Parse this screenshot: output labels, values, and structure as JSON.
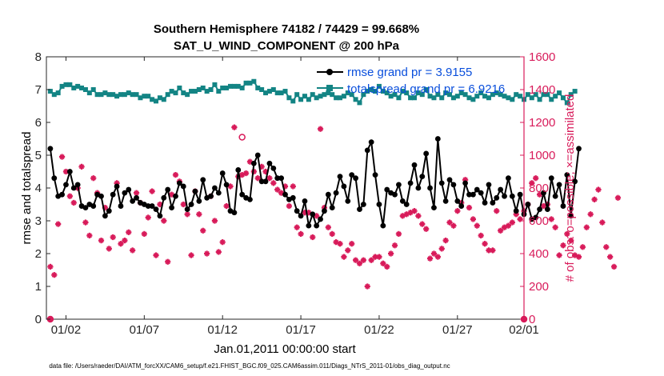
{
  "colors": {
    "rmse": "#000000",
    "totalspread": "#138484",
    "obs": "#d81b5a",
    "right_axis": "#d81b5a",
    "legend_text": "#0a4fdc"
  },
  "chart_data": {
    "type": "line",
    "title": "Southern Hemisphere 74182 / 74429 = 99.668%",
    "subtitle": "SAT_U_WIND_COMPONENT @ 200 hPa",
    "xlabel": "Jan.01,2011 00:00:00 start",
    "ylabel_left": "rmse and totalspread",
    "ylabel_right": "# of obs: o=possible; ×=assimilated",
    "footer": "data file: /Users/raeder/DAI/ATM_forcXX/CAM6_setup/f.e21.FHIST_BGC.f09_025.CAM6assim.011/Diags_NTrS_2011-01/obs_diag_output.nc",
    "xlim": [
      0.75,
      31.25
    ],
    "ylim_left": [
      0,
      8
    ],
    "ylim_right": [
      0,
      1600
    ],
    "xticks": [
      {
        "value": 2,
        "label": "01/02"
      },
      {
        "value": 7,
        "label": "01/07"
      },
      {
        "value": 12,
        "label": "01/12"
      },
      {
        "value": 17,
        "label": "01/17"
      },
      {
        "value": 22,
        "label": "01/22"
      },
      {
        "value": 27,
        "label": "01/27"
      },
      {
        "value": 32,
        "label": "02/01"
      }
    ],
    "yticks_left": [
      "0",
      "1",
      "2",
      "3",
      "4",
      "5",
      "6",
      "7",
      "8"
    ],
    "yticks_right": [
      "0",
      "200",
      "400",
      "600",
      "800",
      "1000",
      "1200",
      "1400",
      "1600"
    ],
    "grid": false,
    "legend_position": "top-right",
    "time_step_days": 0.25,
    "x_start": 1.0,
    "series": [
      {
        "name": "rmse grand pr = 3.9155",
        "axis": "left",
        "marker": "dot",
        "values": [
          5.2,
          4.3,
          3.75,
          3.8,
          4.1,
          4.5,
          4.0,
          4.1,
          3.45,
          3.4,
          3.5,
          3.45,
          3.8,
          3.75,
          3.15,
          3.3,
          3.8,
          4.05,
          3.45,
          3.85,
          3.95,
          3.6,
          3.7,
          3.55,
          3.5,
          3.45,
          3.45,
          3.35,
          3.15,
          3.7,
          3.95,
          3.4,
          3.75,
          4.15,
          4.05,
          3.35,
          3.5,
          3.9,
          3.6,
          4.25,
          3.7,
          3.75,
          4.0,
          3.85,
          4.45,
          4.1,
          3.3,
          3.25,
          4.55,
          3.8,
          3.7,
          3.65,
          4.75,
          5.0,
          4.2,
          4.2,
          4.75,
          4.6,
          4.3,
          4.3,
          3.8,
          3.65,
          3.7,
          3.3,
          3.15,
          3.6,
          2.85,
          3.2,
          2.85,
          3.05,
          3.3,
          3.8,
          3.4,
          3.85,
          4.35,
          4.05,
          3.6,
          4.4,
          4.3,
          3.35,
          3.5,
          5.15,
          5.4,
          4.4,
          3.5,
          2.85,
          3.95,
          3.85,
          3.8,
          4.1,
          3.6,
          3.5,
          4.15,
          4.7,
          4.0,
          4.35,
          5.05,
          4.0,
          3.4,
          5.5,
          4.15,
          3.6,
          4.25,
          4.1,
          3.6,
          3.45,
          4.15,
          3.8,
          3.8,
          3.95,
          3.85,
          3.55,
          4.1,
          3.55,
          3.7,
          3.95,
          3.75,
          4.3,
          3.75,
          3.3,
          3.8,
          3.2,
          3.5,
          3.05,
          3.1,
          3.35,
          3.85,
          3.35,
          4.3,
          3.75,
          4.1,
          3.45,
          4.4,
          3.15,
          4.2,
          5.2
        ]
      },
      {
        "name": "totalspread grand pr = 6.9216",
        "axis": "left",
        "marker": "square",
        "values": [
          6.95,
          6.85,
          6.9,
          7.1,
          7.15,
          7.15,
          7.05,
          7.1,
          7.05,
          7.0,
          6.9,
          7.0,
          6.85,
          6.85,
          6.9,
          6.85,
          6.85,
          6.8,
          6.85,
          6.85,
          6.9,
          6.85,
          6.85,
          6.75,
          6.8,
          6.8,
          6.7,
          6.65,
          6.75,
          6.7,
          6.85,
          6.95,
          6.9,
          7.05,
          6.9,
          6.85,
          6.95,
          6.95,
          7.0,
          7.05,
          6.95,
          7.0,
          7.15,
          6.95,
          7.05,
          7.05,
          7.1,
          7.1,
          7.1,
          7.05,
          7.2,
          7.2,
          7.25,
          7.05,
          7.0,
          6.9,
          6.95,
          7.0,
          6.9,
          6.9,
          6.95,
          6.75,
          6.65,
          6.85,
          6.7,
          6.8,
          6.7,
          6.85,
          6.75,
          6.8,
          6.85,
          6.9,
          6.85,
          6.75,
          6.75,
          6.8,
          6.9,
          6.85,
          6.7,
          6.6,
          6.85,
          6.95,
          7.0,
          6.95,
          7.1,
          6.95,
          6.9,
          6.8,
          6.85,
          6.75,
          6.95,
          6.9,
          6.75,
          6.75,
          6.9,
          6.85,
          7.0,
          6.8,
          6.75,
          6.85,
          6.75,
          6.9,
          6.85,
          6.75,
          6.8,
          6.9,
          6.85,
          6.75,
          6.7,
          6.8,
          6.9,
          6.8,
          6.75,
          6.85,
          6.9,
          6.85,
          6.8,
          6.75,
          6.7,
          6.85,
          6.8,
          6.7,
          6.85,
          6.75,
          6.85,
          6.7,
          6.85,
          6.85,
          6.7,
          6.8,
          6.9,
          6.75,
          6.6,
          6.85,
          6.95
        ]
      },
      {
        "axis": "right",
        "marker": "plus",
        "values": [
          320,
          270,
          580,
          990,
          900,
          750,
          710,
          800,
          930,
          590,
          510,
          860,
          770,
          480,
          680,
          430,
          500,
          830,
          460,
          480,
          530,
          420,
          770,
          710,
          520,
          620,
          780,
          390,
          700,
          600,
          350,
          760,
          880,
          840,
          700,
          640,
          390,
          780,
          640,
          540,
          400,
          750,
          600,
          410,
          470,
          690,
          810,
          1170,
          870,
          880,
          890,
          960,
          900,
          860,
          930,
          900,
          860,
          830,
          790,
          770,
          810,
          690,
          810,
          560,
          520,
          650,
          650,
          500,
          630,
          1160,
          680,
          560,
          520,
          470,
          460,
          380,
          420,
          460,
          360,
          340,
          360,
          200,
          360,
          380,
          380,
          340,
          320,
          400,
          450,
          520,
          630,
          640,
          650,
          660,
          630,
          580,
          550,
          370,
          400,
          380,
          430,
          480,
          590,
          570,
          660,
          710,
          850,
          680,
          610,
          570,
          510,
          460,
          420,
          420,
          660,
          540,
          560,
          570,
          590,
          640,
          610,
          660,
          700,
          830,
          860,
          760,
          690,
          700,
          610,
          560,
          390,
          450,
          520,
          480,
          390,
          380,
          440,
          560,
          640,
          730,
          790,
          590,
          440,
          380,
          320,
          740
        ]
      }
    ],
    "annotations": [
      {
        "text": "o",
        "x": 13.25,
        "axis": "right",
        "y": 1110
      },
      {
        "text": "o",
        "x": 1.0,
        "axis": "right",
        "y": 0
      },
      {
        "text": "o",
        "x": 31.75,
        "axis": "right",
        "y": 0
      }
    ]
  }
}
